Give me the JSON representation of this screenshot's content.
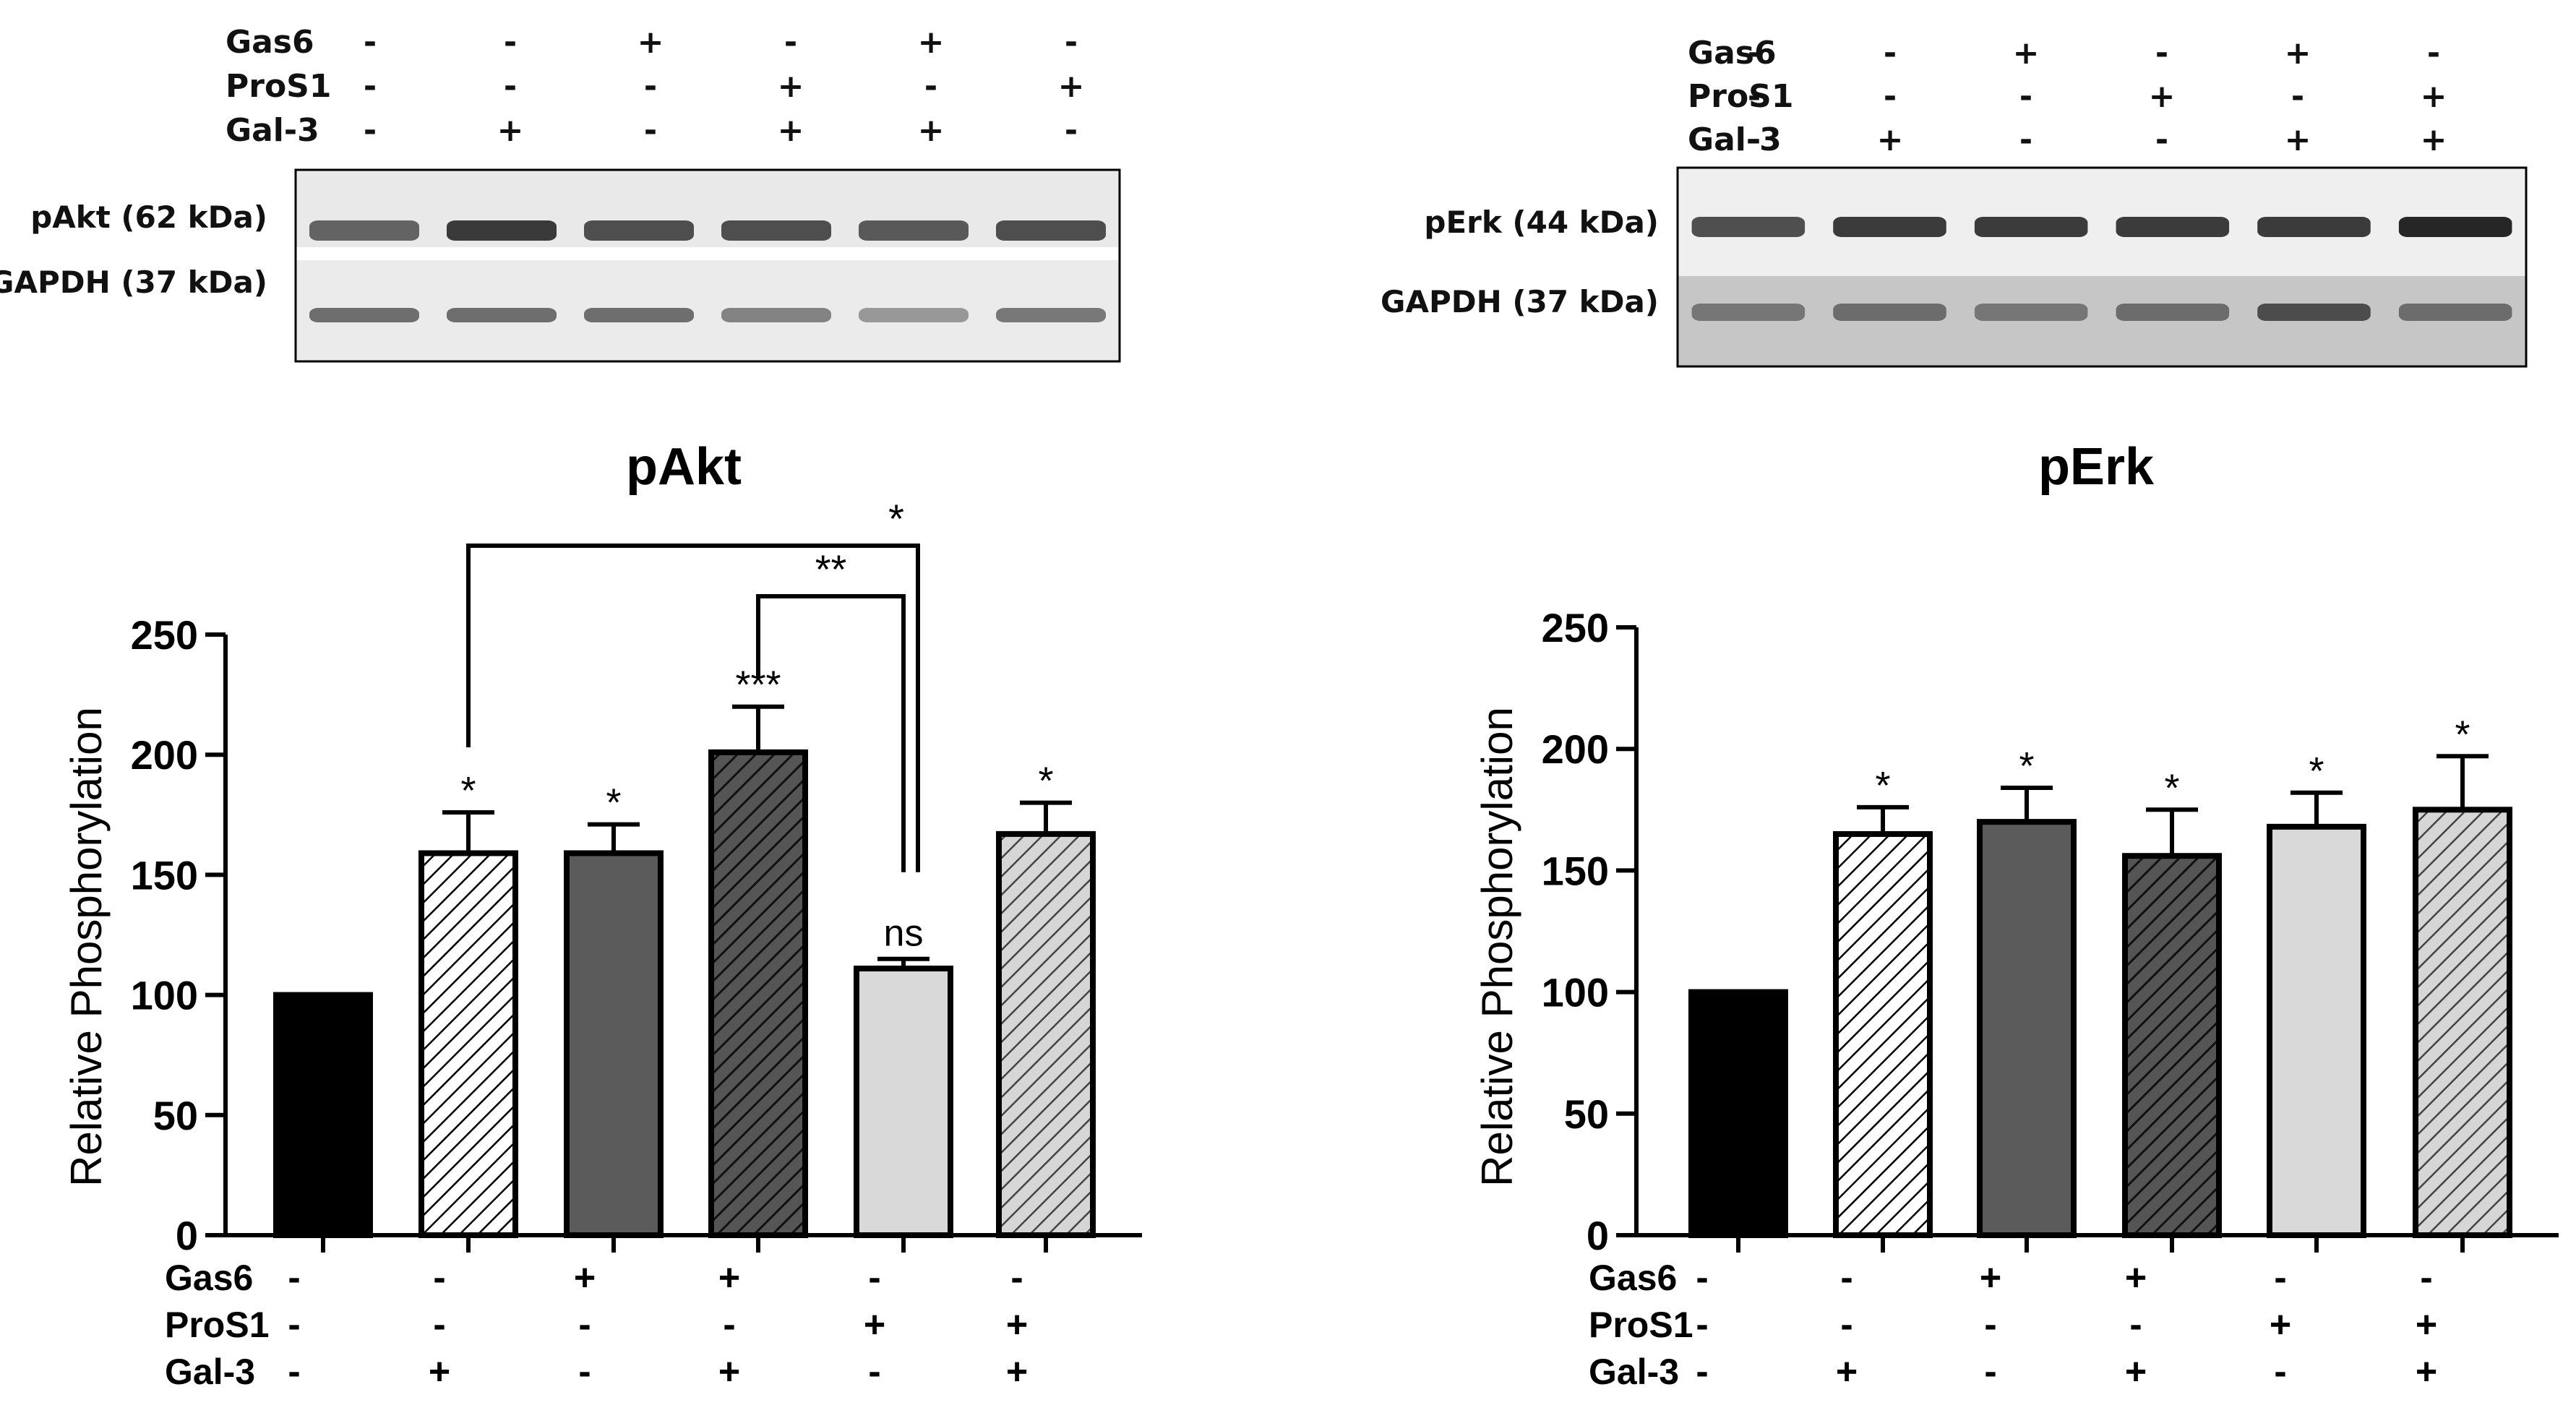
{
  "blots": [
    {
      "rows": [
        {
          "label": "Gas6",
          "signs": [
            "-",
            "-",
            "+",
            "-",
            "+",
            "-"
          ]
        },
        {
          "label": "ProS1",
          "signs": [
            "-",
            "-",
            "-",
            "+",
            "-",
            "+"
          ]
        },
        {
          "label": "Gal-3",
          "signs": [
            "-",
            "+",
            "-",
            "+",
            "+",
            "-"
          ]
        }
      ],
      "bands": [
        {
          "label": "pAkt (62 kDa)",
          "intensity": [
            0.65,
            0.85,
            0.75,
            0.75,
            0.7,
            0.75
          ]
        },
        {
          "label": "GAPDH (37 kDa)",
          "intensity": [
            0.6,
            0.6,
            0.6,
            0.5,
            0.4,
            0.55
          ]
        }
      ]
    },
    {
      "rows": [
        {
          "label": "Gas6",
          "signs": [
            "-",
            "-",
            "+",
            "-",
            "+",
            "-"
          ]
        },
        {
          "label": "ProS1",
          "signs": [
            "-",
            "-",
            "-",
            "+",
            "-",
            "+"
          ]
        },
        {
          "label": "Gal-3",
          "signs": [
            "-",
            "+",
            "-",
            "-",
            "+",
            "+"
          ]
        }
      ],
      "bands": [
        {
          "label": "pErk (44 kDa)",
          "intensity": [
            0.75,
            0.85,
            0.85,
            0.85,
            0.85,
            0.95
          ]
        },
        {
          "label": "GAPDH (37 kDa)",
          "intensity": [
            0.55,
            0.6,
            0.55,
            0.6,
            0.75,
            0.6
          ]
        }
      ]
    }
  ],
  "chart_data": [
    {
      "type": "bar",
      "title": "pAkt",
      "ylabel": "Relative Phosphorylation",
      "ylim": [
        0,
        250
      ],
      "yticks": [
        "0",
        "50",
        "100",
        "150",
        "200",
        "250"
      ],
      "values": [
        100,
        159,
        159,
        201,
        111,
        167
      ],
      "errors": [
        0,
        17,
        12,
        19,
        4,
        13
      ],
      "fills": [
        "black",
        "hatch-white",
        "dark-gray",
        "hatch-dark",
        "light-gray",
        "hatch-light"
      ],
      "significance": [
        "",
        "*",
        "*",
        "***",
        "ns",
        "*"
      ],
      "condition_rows": [
        {
          "label": "Gas6",
          "signs": [
            "-",
            "-",
            "+",
            "+",
            "-",
            "-"
          ]
        },
        {
          "label": "ProS1",
          "signs": [
            "-",
            "-",
            "-",
            "-",
            "+",
            "+"
          ]
        },
        {
          "label": "Gal-3",
          "signs": [
            "-",
            "+",
            "-",
            "+",
            "-",
            "+"
          ]
        }
      ],
      "brackets": [
        {
          "from": 1,
          "to": 4,
          "label": "*"
        },
        {
          "from": 3,
          "to": 4,
          "label": "**"
        }
      ]
    },
    {
      "type": "bar",
      "title": "pErk",
      "ylabel": "Relative Phosphorylation",
      "ylim": [
        0,
        250
      ],
      "yticks": [
        "0",
        "50",
        "100",
        "150",
        "200",
        "250"
      ],
      "values": [
        100,
        165,
        170,
        156,
        168,
        175
      ],
      "errors": [
        0,
        11,
        14,
        19,
        14,
        22
      ],
      "fills": [
        "black",
        "hatch-white",
        "dark-gray",
        "hatch-dark",
        "light-gray",
        "hatch-light"
      ],
      "significance": [
        "",
        "*",
        "*",
        "*",
        "*",
        "*"
      ],
      "condition_rows": [
        {
          "label": "Gas6",
          "signs": [
            "-",
            "-",
            "+",
            "+",
            "-",
            "-"
          ]
        },
        {
          "label": "ProS1",
          "signs": [
            "-",
            "-",
            "-",
            "-",
            "+",
            "+"
          ]
        },
        {
          "label": "Gal-3",
          "signs": [
            "-",
            "+",
            "-",
            "+",
            "-",
            "+"
          ]
        }
      ],
      "brackets": []
    }
  ]
}
